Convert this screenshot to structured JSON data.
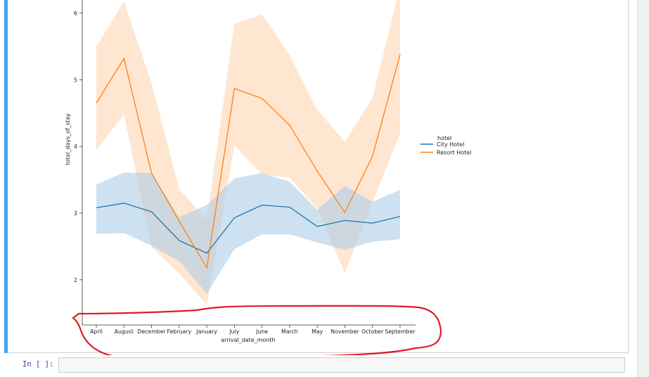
{
  "notebook": {
    "next_prompt": "In [ ]:"
  },
  "chart_data": {
    "type": "line",
    "xlabel": "arrival_date_month",
    "ylabel": "total_days_of_stay",
    "categories": [
      "April",
      "August",
      "December",
      "February",
      "January",
      "July",
      "June",
      "March",
      "May",
      "November",
      "October",
      "September"
    ],
    "yticks": [
      2,
      3,
      4,
      5,
      6
    ],
    "ylim": [
      1.5,
      6.2
    ],
    "legend": {
      "title": "hotel",
      "placement": "right"
    },
    "series": [
      {
        "name": "City Hotel",
        "color": "#1f77b4",
        "band_color": "#aecde6",
        "values": [
          3.08,
          3.15,
          3.02,
          2.59,
          2.4,
          2.93,
          3.12,
          3.09,
          2.8,
          2.89,
          2.85,
          2.95
        ],
        "ci_low": [
          2.69,
          2.7,
          2.51,
          2.28,
          1.79,
          2.46,
          2.68,
          2.68,
          2.56,
          2.45,
          2.57,
          2.61
        ],
        "ci_high": [
          3.43,
          3.61,
          3.6,
          2.94,
          3.12,
          3.52,
          3.6,
          3.47,
          3.05,
          3.41,
          3.17,
          3.35
        ]
      },
      {
        "name": "Resort Hotel",
        "color": "#ff7f0e",
        "band_color": "#ffd5b3",
        "values": [
          4.65,
          5.32,
          3.6,
          2.88,
          2.18,
          4.87,
          4.72,
          4.32,
          3.63,
          3.01,
          3.85,
          5.38
        ],
        "ci_low": [
          3.94,
          4.48,
          2.49,
          2.1,
          1.62,
          4.01,
          3.58,
          3.53,
          3.07,
          2.1,
          3.16,
          4.2
        ],
        "ci_high": [
          5.5,
          6.17,
          4.95,
          3.36,
          2.9,
          5.84,
          5.98,
          5.37,
          4.55,
          4.07,
          4.73,
          6.4
        ]
      }
    ]
  }
}
